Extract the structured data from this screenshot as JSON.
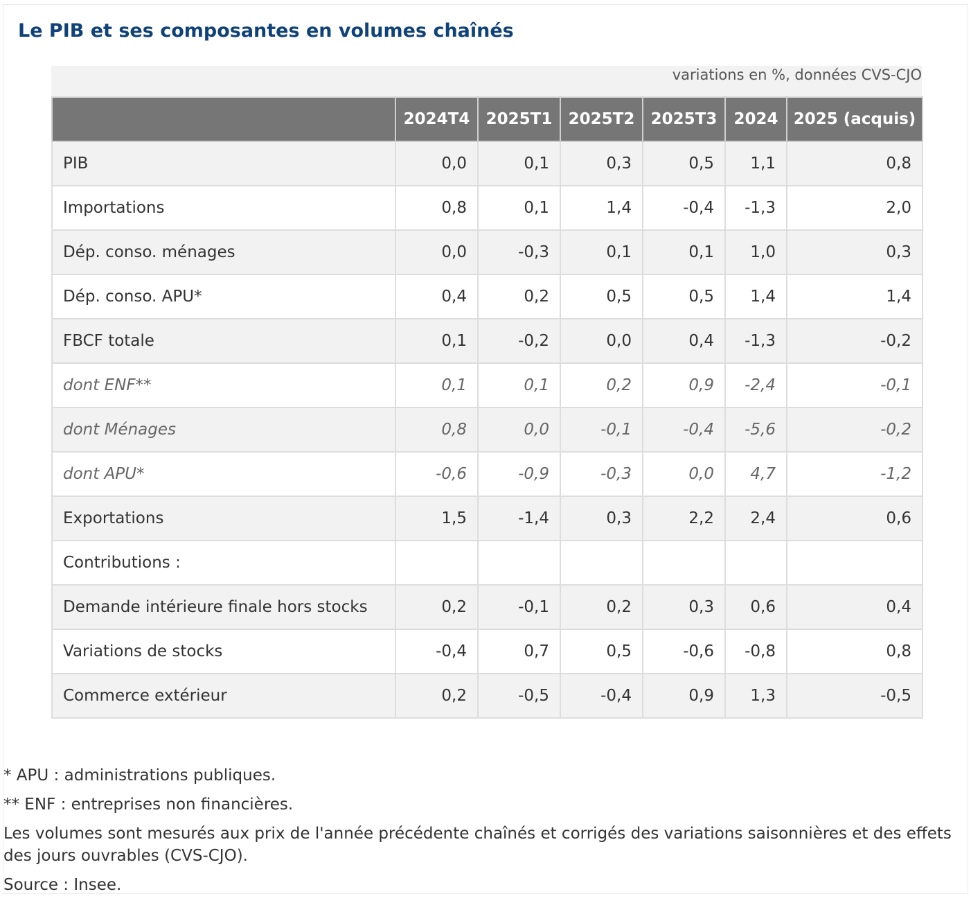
{
  "title": "Le PIB et ses composantes en volumes chaînés",
  "caption": "variations en %, données CVS-CJO",
  "table": {
    "columns": [
      "",
      "2024T4",
      "2025T1",
      "2025T2",
      "2025T3",
      "2024",
      "2025 (acquis)"
    ],
    "rows": [
      {
        "label": "PIB",
        "values": [
          "0,0",
          "0,1",
          "0,3",
          "0,5",
          "1,1",
          "0,8"
        ],
        "italic": false
      },
      {
        "label": "Importations",
        "values": [
          "0,8",
          "0,1",
          "1,4",
          "-0,4",
          "-1,3",
          "2,0"
        ],
        "italic": false
      },
      {
        "label": "Dép. conso. ménages",
        "values": [
          "0,0",
          "-0,3",
          "0,1",
          "0,1",
          "1,0",
          "0,3"
        ],
        "italic": false
      },
      {
        "label": "Dép. conso. APU*",
        "values": [
          "0,4",
          "0,2",
          "0,5",
          "0,5",
          "1,4",
          "1,4"
        ],
        "italic": false
      },
      {
        "label": "FBCF totale",
        "values": [
          "0,1",
          "-0,2",
          "0,0",
          "0,4",
          "-1,3",
          "-0,2"
        ],
        "italic": false
      },
      {
        "label": "dont ENF**",
        "values": [
          "0,1",
          "0,1",
          "0,2",
          "0,9",
          "-2,4",
          "-0,1"
        ],
        "italic": true
      },
      {
        "label": "dont Ménages",
        "values": [
          "0,8",
          "0,0",
          "-0,1",
          "-0,4",
          "-5,6",
          "-0,2"
        ],
        "italic": true
      },
      {
        "label": "dont APU*",
        "values": [
          "-0,6",
          "-0,9",
          "-0,3",
          "0,0",
          "4,7",
          "-1,2"
        ],
        "italic": true
      },
      {
        "label": "Exportations",
        "values": [
          "1,5",
          "-1,4",
          "0,3",
          "2,2",
          "2,4",
          "0,6"
        ],
        "italic": false
      },
      {
        "label": "Contributions :",
        "values": [
          "",
          "",
          "",
          "",
          "",
          ""
        ],
        "italic": false
      },
      {
        "label": "Demande intérieure finale hors stocks",
        "values": [
          "0,2",
          "-0,1",
          "0,2",
          "0,3",
          "0,6",
          "0,4"
        ],
        "italic": false
      },
      {
        "label": "Variations de stocks",
        "values": [
          "-0,4",
          "0,7",
          "0,5",
          "-0,6",
          "-0,8",
          "0,8"
        ],
        "italic": false
      },
      {
        "label": "Commerce extérieur",
        "values": [
          "0,2",
          "-0,5",
          "-0,4",
          "0,9",
          "1,3",
          "-0,5"
        ],
        "italic": false
      }
    ]
  },
  "notes": {
    "apu": "* APU : administrations publiques.",
    "enf": "** ENF : entreprises non financières.",
    "method": "Les volumes sont mesurés aux prix de l'année précédente chaînés et corrigés des variations saisonnières et des effets des jours ouvrables (CVS-CJO).",
    "source": "Source : Insee."
  }
}
